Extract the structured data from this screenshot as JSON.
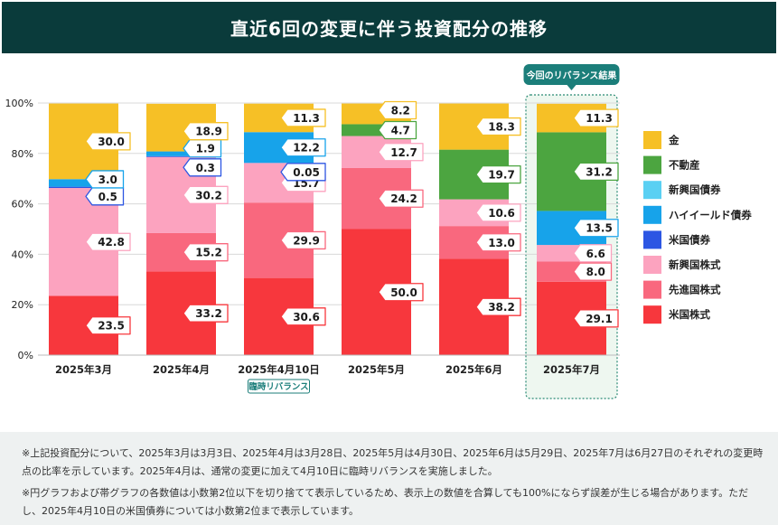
{
  "title": "直近6回の変更に伴う投資配分の推移",
  "highlight_label": "今回のリバランス結果",
  "special_label": "臨時リバランス",
  "notes": [
    "※上記投資配分について、2025年3月は3月3日、2025年4月は3月28日、2025年5月は4月30日、2025年6月は5月29日、2025年7月は6月27日のそれぞれの変更時点の比率を示しています。2025年4月は、通常の変更に加えて4月10日に臨時リバランスを実施しました。",
    "※円グラフおよび帯グラフの各数値は小数第2位以下を切り捨てて表示しているため、表示上の数値を合算しても100%にならず誤差が生じる場合があります。ただし、2025年4月10日の米国債券については小数第2位まで表示しています。"
  ],
  "chart_data": {
    "type": "bar",
    "stacked": true,
    "categories": [
      "2025年3月",
      "2025年4月",
      "2025年4月10日",
      "2025年5月",
      "2025年6月",
      "2025年7月"
    ],
    "yticks": [
      "0%",
      "20%",
      "40%",
      "60%",
      "80%",
      "100%"
    ],
    "ylim": [
      0,
      100
    ],
    "highlight_category": "2025年7月",
    "special_category": "2025年4月10日",
    "series": [
      {
        "name": "米国株式",
        "color": "#f7373d",
        "values": [
          23.5,
          33.2,
          30.6,
          50.0,
          38.2,
          29.1
        ]
      },
      {
        "name": "先進国株式",
        "color": "#f9687e",
        "values": [
          0,
          15.2,
          29.9,
          24.2,
          13.0,
          8.0
        ]
      },
      {
        "name": "新興国株式",
        "color": "#fca3bf",
        "values": [
          42.8,
          30.2,
          15.7,
          12.7,
          10.6,
          6.6
        ]
      },
      {
        "name": "米国債券",
        "color": "#2c56e3",
        "values": [
          0.5,
          0.3,
          0.05,
          0,
          0,
          0
        ]
      },
      {
        "name": "ハイイールド債券",
        "color": "#17a3ea",
        "values": [
          3.0,
          1.9,
          12.2,
          0,
          0,
          13.5
        ]
      },
      {
        "name": "新興国債券",
        "color": "#5ad0f3",
        "values": [
          0,
          0,
          0,
          0,
          0,
          0
        ]
      },
      {
        "name": "不動産",
        "color": "#4ca540",
        "values": [
          0,
          0,
          0,
          4.7,
          19.7,
          31.2
        ]
      },
      {
        "name": "金",
        "color": "#f6c026",
        "values": [
          30.0,
          18.9,
          11.3,
          8.2,
          18.3,
          11.3
        ]
      }
    ],
    "legend_order": [
      "金",
      "不動産",
      "新興国債券",
      "ハイイールド債券",
      "米国債券",
      "新興国株式",
      "先進国株式",
      "米国株式"
    ],
    "legend_position": "right",
    "labels": [
      [
        {
          "series": "米国株式",
          "text": "23.5"
        },
        {
          "series": "新興国株式",
          "text": "42.8"
        },
        {
          "series": "米国債券",
          "text": "0.5",
          "offset": 10
        },
        {
          "series": "ハイイールド債券",
          "text": "3.0",
          "offset": -4
        },
        {
          "series": "金",
          "text": "30.0"
        }
      ],
      [
        {
          "series": "米国株式",
          "text": "33.2"
        },
        {
          "series": "先進国株式",
          "text": "15.2"
        },
        {
          "series": "新興国株式",
          "text": "30.2"
        },
        {
          "series": "米国債券",
          "text": "0.3",
          "offset": 12
        },
        {
          "series": "ハイイールド債券",
          "text": "1.9",
          "offset": -6
        },
        {
          "series": "金",
          "text": "18.9",
          "offset": 4
        }
      ],
      [
        {
          "series": "米国株式",
          "text": "30.6"
        },
        {
          "series": "先進国株式",
          "text": "29.9"
        },
        {
          "series": "新興国株式",
          "text": "15.7"
        },
        {
          "series": "米国債券",
          "text": "0.05",
          "offset": 10
        },
        {
          "series": "ハイイールド債券",
          "text": "12.2"
        },
        {
          "series": "金",
          "text": "11.3"
        }
      ],
      [
        {
          "series": "米国株式",
          "text": "50.0"
        },
        {
          "series": "先進国株式",
          "text": "24.2"
        },
        {
          "series": "新興国株式",
          "text": "12.7"
        },
        {
          "series": "不動産",
          "text": "4.7"
        },
        {
          "series": "金",
          "text": "8.2",
          "offset": -4
        }
      ],
      [
        {
          "series": "米国株式",
          "text": "38.2"
        },
        {
          "series": "先進国株式",
          "text": "13.0"
        },
        {
          "series": "新興国株式",
          "text": "10.6"
        },
        {
          "series": "不動産",
          "text": "19.7"
        },
        {
          "series": "金",
          "text": "18.3"
        }
      ],
      [
        {
          "series": "米国株式",
          "text": "29.1"
        },
        {
          "series": "先進国株式",
          "text": "8.0"
        },
        {
          "series": "新興国株式",
          "text": "6.6"
        },
        {
          "series": "ハイイールド債券",
          "text": "13.5"
        },
        {
          "series": "不動産",
          "text": "31.2"
        },
        {
          "series": "金",
          "text": "11.3"
        }
      ]
    ]
  }
}
